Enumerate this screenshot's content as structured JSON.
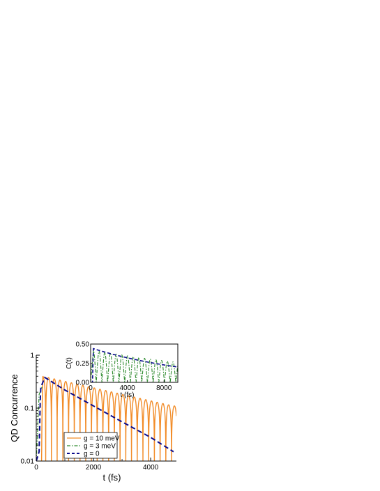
{
  "chart_data": [
    {
      "type": "line",
      "xlabel": "t (fs)",
      "ylabel": "QD Concurrence",
      "xlim": [
        0,
        4900
      ],
      "ylim": [
        0.01,
        1
      ],
      "yscale": "log",
      "xticks": [
        "0",
        "2000",
        "4000"
      ],
      "yticks": [
        "0.01",
        "0.1",
        "1"
      ],
      "grid": false,
      "legend": "bottom-left",
      "series": [
        {
          "name": "g = 10 meV",
          "color": "#f28c28",
          "style": "solid",
          "period_fs": 200,
          "envelope": {
            "x": [
              230,
              4800
            ],
            "y": [
              0.4,
              0.11
            ]
          },
          "minima": 0.012
        },
        {
          "name": "g = 3 meV",
          "color": "#2e8b2e",
          "style": "dash-dot",
          "x": [
            0,
            100,
            200
          ],
          "y": [
            0.01,
            0.18,
            0.25
          ]
        },
        {
          "name": "g = 0",
          "color": "#0a0a8c",
          "style": "dashed",
          "x": [
            0,
            100,
            150,
            300,
            1000,
            2000,
            3000,
            4000,
            4800
          ],
          "y": [
            0.01,
            0.015,
            0.24,
            0.38,
            0.22,
            0.11,
            0.055,
            0.028,
            0.015
          ]
        }
      ]
    },
    {
      "type": "line",
      "position": "inset-top-right",
      "xlabel": "t (fs)",
      "ylabel": "C(t)",
      "xlim": [
        0,
        9500
      ],
      "ylim": [
        0,
        0.5
      ],
      "xticks": [
        "0",
        "4000",
        "8000"
      ],
      "yticks": [
        "0.00",
        "0.25",
        "0.50"
      ],
      "series": [
        {
          "name": "g = 3 meV",
          "color": "#2e8b2e",
          "style": "dash-dot",
          "period_fs": 620,
          "envelope": {
            "x": [
              300,
              9500
            ],
            "y": [
              0.42,
              0.26
            ]
          }
        },
        {
          "name": "g = 0",
          "color": "#0a0a8c",
          "style": "dashed",
          "x": [
            0,
            200,
            300,
            9500
          ],
          "y": [
            0,
            0.0,
            0.44,
            0.2
          ]
        }
      ]
    }
  ]
}
